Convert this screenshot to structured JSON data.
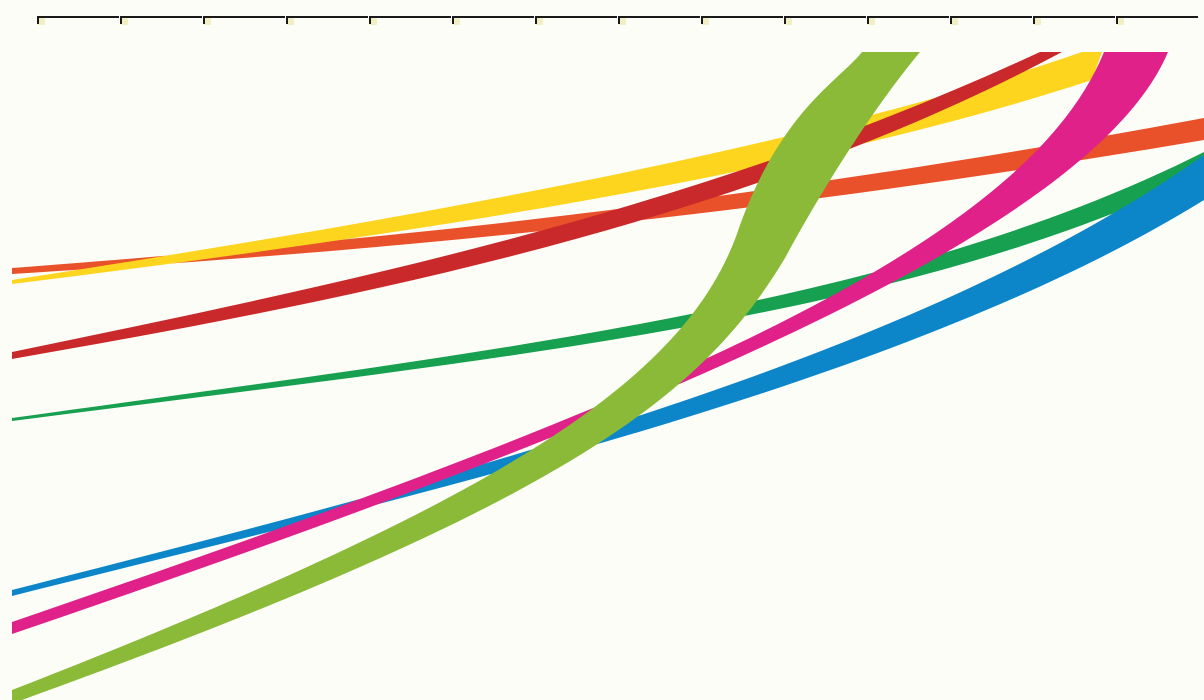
{
  "background_color": "#fdfdf8",
  "tick_strip": {
    "line_color": "#1a1a1a",
    "tab_color": "#f3efc4"
  },
  "ribbons": [
    {
      "name": "orange",
      "color": "#e8512a"
    },
    {
      "name": "yellow",
      "color": "#fdd51f"
    },
    {
      "name": "red",
      "color": "#c9292b"
    },
    {
      "name": "green",
      "color": "#17a050"
    },
    {
      "name": "blue",
      "color": "#0c86c8"
    },
    {
      "name": "magenta",
      "color": "#e0218a"
    },
    {
      "name": "light-green",
      "color": "#8aba38"
    }
  ]
}
